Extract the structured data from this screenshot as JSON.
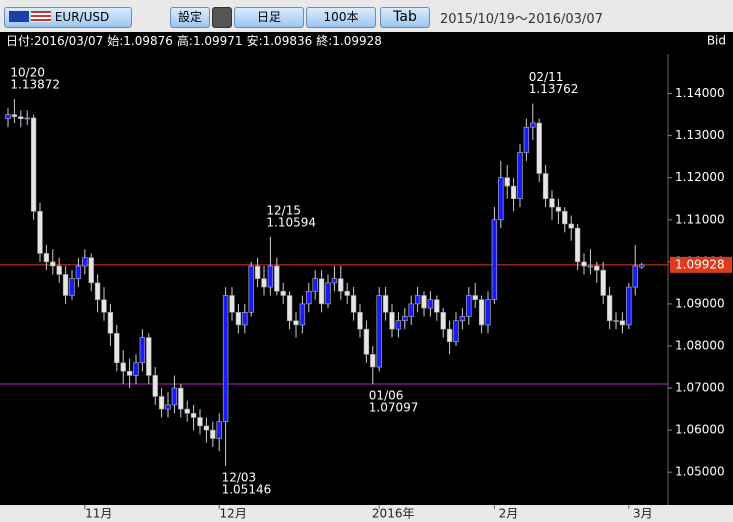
{
  "toolbar": {
    "pair": "EUR/USD",
    "settings": "設定",
    "period": "日足",
    "count": "100本",
    "tab": "Tab",
    "range": "2015/10/19～2016/03/07"
  },
  "info": {
    "date_label": "日付:",
    "date": "2016/03/07",
    "open_label": "始:",
    "high_label": "高:",
    "low_label": "安:",
    "close_label": "終:",
    "side": "Bid"
  },
  "chart_data": {
    "type": "candlestick",
    "up_color": "#1a1aff",
    "down_color": "#e6e6e6",
    "wick_color": "#cfcfcf",
    "ohlc": [
      [
        1.134,
        1.1365,
        1.132,
        1.135
      ],
      [
        1.135,
        1.13872,
        1.133,
        1.1345
      ],
      [
        1.1345,
        1.136,
        1.132,
        1.134
      ],
      [
        1.134,
        1.136,
        1.1325,
        1.1342
      ],
      [
        1.1342,
        1.135,
        1.11,
        1.112
      ],
      [
        1.112,
        1.114,
        1.1,
        1.102
      ],
      [
        1.102,
        1.104,
        1.098,
        1.1
      ],
      [
        1.1,
        1.103,
        1.097,
        1.099
      ],
      [
        1.099,
        1.101,
        1.095,
        1.097
      ],
      [
        1.097,
        1.099,
        1.09,
        1.092
      ],
      [
        1.092,
        1.098,
        1.091,
        1.096
      ],
      [
        1.096,
        1.101,
        1.094,
        1.099
      ],
      [
        1.099,
        1.103,
        1.097,
        1.101
      ],
      [
        1.101,
        1.102,
        1.093,
        1.095
      ],
      [
        1.095,
        1.097,
        1.088,
        1.091
      ],
      [
        1.091,
        1.094,
        1.086,
        1.088
      ],
      [
        1.088,
        1.09,
        1.08,
        1.083
      ],
      [
        1.083,
        1.085,
        1.074,
        1.076
      ],
      [
        1.076,
        1.079,
        1.071,
        1.074
      ],
      [
        1.074,
        1.077,
        1.07,
        1.073
      ],
      [
        1.073,
        1.078,
        1.071,
        1.076
      ],
      [
        1.076,
        1.084,
        1.074,
        1.082
      ],
      [
        1.082,
        1.083,
        1.071,
        1.073
      ],
      [
        1.073,
        1.075,
        1.066,
        1.068
      ],
      [
        1.068,
        1.07,
        1.063,
        1.065
      ],
      [
        1.065,
        1.069,
        1.063,
        1.066
      ],
      [
        1.066,
        1.073,
        1.064,
        1.07
      ],
      [
        1.07,
        1.071,
        1.063,
        1.065
      ],
      [
        1.065,
        1.067,
        1.062,
        1.064
      ],
      [
        1.064,
        1.066,
        1.06,
        1.063
      ],
      [
        1.063,
        1.065,
        1.059,
        1.061
      ],
      [
        1.061,
        1.063,
        1.057,
        1.06
      ],
      [
        1.06,
        1.062,
        1.056,
        1.058
      ],
      [
        1.058,
        1.064,
        1.055,
        1.062
      ],
      [
        1.062,
        1.094,
        1.05146,
        1.092
      ],
      [
        1.092,
        1.094,
        1.086,
        1.088
      ],
      [
        1.088,
        1.09,
        1.083,
        1.085
      ],
      [
        1.085,
        1.09,
        1.083,
        1.088
      ],
      [
        1.088,
        1.1,
        1.087,
        1.099
      ],
      [
        1.099,
        1.101,
        1.094,
        1.096
      ],
      [
        1.096,
        1.099,
        1.092,
        1.094
      ],
      [
        1.094,
        1.10594,
        1.092,
        1.099
      ],
      [
        1.099,
        1.101,
        1.092,
        1.093
      ],
      [
        1.093,
        1.095,
        1.09,
        1.092
      ],
      [
        1.092,
        1.093,
        1.084,
        1.086
      ],
      [
        1.086,
        1.088,
        1.082,
        1.085
      ],
      [
        1.085,
        1.092,
        1.083,
        1.09
      ],
      [
        1.09,
        1.095,
        1.088,
        1.093
      ],
      [
        1.093,
        1.098,
        1.091,
        1.096
      ],
      [
        1.096,
        1.098,
        1.088,
        1.09
      ],
      [
        1.09,
        1.097,
        1.089,
        1.095
      ],
      [
        1.095,
        1.099,
        1.093,
        1.096
      ],
      [
        1.096,
        1.099,
        1.091,
        1.093
      ],
      [
        1.093,
        1.095,
        1.09,
        1.092
      ],
      [
        1.092,
        1.094,
        1.086,
        1.088
      ],
      [
        1.088,
        1.09,
        1.082,
        1.084
      ],
      [
        1.084,
        1.086,
        1.076,
        1.078
      ],
      [
        1.078,
        1.08,
        1.07097,
        1.075
      ],
      [
        1.075,
        1.094,
        1.074,
        1.092
      ],
      [
        1.092,
        1.094,
        1.086,
        1.088
      ],
      [
        1.088,
        1.09,
        1.082,
        1.084
      ],
      [
        1.084,
        1.088,
        1.082,
        1.086
      ],
      [
        1.086,
        1.089,
        1.084,
        1.087
      ],
      [
        1.087,
        1.092,
        1.085,
        1.09
      ],
      [
        1.09,
        1.094,
        1.088,
        1.092
      ],
      [
        1.092,
        1.093,
        1.087,
        1.089
      ],
      [
        1.089,
        1.093,
        1.087,
        1.091
      ],
      [
        1.091,
        1.092,
        1.086,
        1.088
      ],
      [
        1.088,
        1.089,
        1.082,
        1.084
      ],
      [
        1.084,
        1.086,
        1.078,
        1.081
      ],
      [
        1.081,
        1.088,
        1.08,
        1.086
      ],
      [
        1.086,
        1.089,
        1.084,
        1.087
      ],
      [
        1.087,
        1.094,
        1.085,
        1.092
      ],
      [
        1.092,
        1.095,
        1.089,
        1.091
      ],
      [
        1.091,
        1.092,
        1.083,
        1.085
      ],
      [
        1.085,
        1.093,
        1.083,
        1.091
      ],
      [
        1.091,
        1.113,
        1.09,
        1.11
      ],
      [
        1.11,
        1.124,
        1.108,
        1.12
      ],
      [
        1.12,
        1.123,
        1.115,
        1.118
      ],
      [
        1.118,
        1.12,
        1.112,
        1.115
      ],
      [
        1.115,
        1.128,
        1.113,
        1.126
      ],
      [
        1.126,
        1.134,
        1.124,
        1.132
      ],
      [
        1.132,
        1.13762,
        1.129,
        1.133
      ],
      [
        1.133,
        1.134,
        1.119,
        1.121
      ],
      [
        1.121,
        1.123,
        1.113,
        1.115
      ],
      [
        1.115,
        1.117,
        1.11,
        1.113
      ],
      [
        1.113,
        1.115,
        1.109,
        1.112
      ],
      [
        1.112,
        1.113,
        1.107,
        1.109
      ],
      [
        1.109,
        1.111,
        1.105,
        1.108
      ],
      [
        1.108,
        1.109,
        1.098,
        1.1
      ],
      [
        1.1,
        1.102,
        1.097,
        1.099
      ],
      [
        1.099,
        1.103,
        1.097,
        1.099
      ],
      [
        1.099,
        1.1,
        1.095,
        1.098
      ],
      [
        1.098,
        1.1,
        1.09,
        1.092
      ],
      [
        1.092,
        1.094,
        1.084,
        1.086
      ],
      [
        1.086,
        1.088,
        1.084,
        1.086
      ],
      [
        1.086,
        1.088,
        1.083,
        1.085
      ],
      [
        1.085,
        1.095,
        1.084,
        1.094
      ],
      [
        1.094,
        1.104,
        1.092,
        1.099
      ],
      [
        1.09876,
        1.09971,
        1.09836,
        1.09928
      ]
    ],
    "ylim": [
      1.0422,
      1.1494
    ],
    "yticks": [
      {
        "value": 1.05,
        "label": "1.05000"
      },
      {
        "value": 1.06,
        "label": "1.06000"
      },
      {
        "value": 1.07,
        "label": "1.07000"
      },
      {
        "value": 1.08,
        "label": "1.08000"
      },
      {
        "value": 1.09,
        "label": "1.09000"
      },
      {
        "value": 1.1,
        "label": "1.10000"
      },
      {
        "value": 1.11,
        "label": "1.11000"
      },
      {
        "value": 1.12,
        "label": "1.12000"
      },
      {
        "value": 1.13,
        "label": "1.13000"
      },
      {
        "value": 1.14,
        "label": "1.14000"
      }
    ],
    "xticks": [
      {
        "value": 12,
        "label": "11月"
      },
      {
        "value": 33,
        "label": "12月"
      },
      {
        "value": 58,
        "label": "2016年"
      },
      {
        "value": 76,
        "label": "2月"
      },
      {
        "value": 97,
        "label": "3月"
      }
    ],
    "hlines": [
      {
        "value": 1.09928,
        "color": "#e03a1e"
      },
      {
        "value": 1.07097,
        "color": "#c020c0"
      }
    ],
    "annotations": [
      {
        "label": "10/20",
        "value": 1.13872
      },
      {
        "label": "12/03",
        "value": 1.05146
      },
      {
        "label": "12/15",
        "value": 1.10594
      },
      {
        "label": "01/06",
        "value": 1.07097
      },
      {
        "label": "02/11",
        "value": 1.13762
      }
    ]
  }
}
